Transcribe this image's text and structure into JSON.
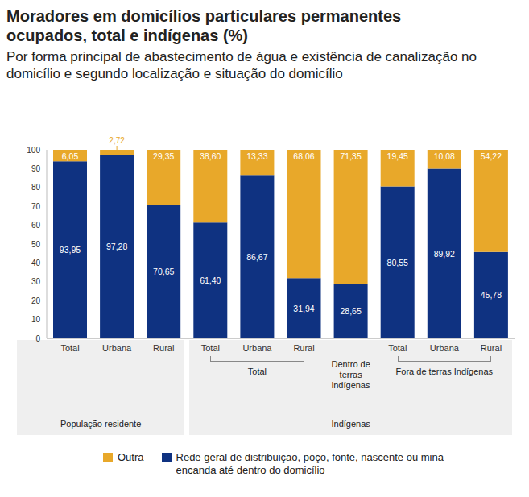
{
  "chart_data": {
    "type": "bar",
    "title": "Moradores em domicílios particulares permanentes ocupados, total e indígenas (%)",
    "subtitle": "Por forma principal de abastecimento de água e existência de canalização no domicílio e segundo localização e situação do domicílio",
    "categories": [
      "Total",
      "Urbana",
      "Rural",
      "Total",
      "Urbana",
      "Rural",
      null,
      "Total",
      "Urbana",
      "Rural"
    ],
    "subgroups": [
      null,
      null,
      null,
      "Total",
      "Total",
      "Total",
      "Dentro de terras indígenas",
      "Fora de terras Indígenas",
      "Fora de terras Indígenas",
      "Fora de terras Indígenas"
    ],
    "groups": [
      "População residente",
      "População residente",
      "População residente",
      "Indígenas",
      "Indígenas",
      "Indígenas",
      "Indígenas",
      "Indígenas",
      "Indígenas",
      "Indígenas"
    ],
    "series": [
      {
        "name": "Rede geral de distribuição, poço, fonte, nascente ou mina encanda até dentro do domicílio",
        "color": "#0f3281",
        "values": [
          93.95,
          97.28,
          70.65,
          61.4,
          86.67,
          31.94,
          28.65,
          80.55,
          89.92,
          45.78
        ],
        "value_labels": [
          "93,95",
          "97,28",
          "70,65",
          "61,40",
          "86,67",
          "31,94",
          "28,65",
          "80,55",
          "89,92",
          "45,78"
        ]
      },
      {
        "name": "Outra",
        "color": "#e8a82a",
        "values": [
          6.05,
          2.72,
          29.35,
          38.6,
          13.33,
          68.06,
          71.35,
          19.45,
          10.08,
          54.22
        ],
        "value_labels": [
          "6,05",
          "2,72",
          "29,35",
          "38,60",
          "13,33",
          "68,06",
          "71,35",
          "19,45",
          "10,08",
          "54,22"
        ]
      }
    ],
    "ylim": [
      0,
      100
    ],
    "yticks": [
      0,
      10,
      20,
      30,
      40,
      50,
      60,
      70,
      80,
      90,
      100
    ],
    "stacked": true,
    "data_labels": true,
    "grid": false,
    "legend": "bottom"
  }
}
